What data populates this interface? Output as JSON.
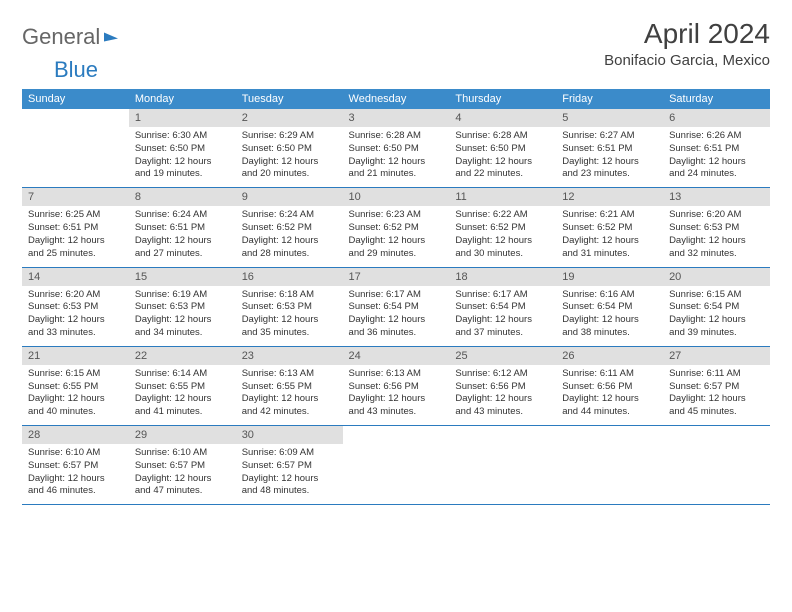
{
  "logo": {
    "word1": "General",
    "word2": "Blue"
  },
  "title": "April 2024",
  "location": "Bonifacio Garcia, Mexico",
  "colors": {
    "header_bg": "#3b8bca",
    "header_text": "#ffffff",
    "daynum_bg": "#e0e0e0",
    "daynum_text": "#555555",
    "body_text": "#333333",
    "rule": "#2b7bbf",
    "page_bg": "#ffffff",
    "title_text": "#404040",
    "logo_gray": "#666666",
    "logo_blue": "#2b7bbf"
  },
  "day_headers": [
    "Sunday",
    "Monday",
    "Tuesday",
    "Wednesday",
    "Thursday",
    "Friday",
    "Saturday"
  ],
  "weeks": [
    [
      {
        "empty": true
      },
      {
        "num": "1",
        "sunrise": "Sunrise: 6:30 AM",
        "sunset": "Sunset: 6:50 PM",
        "day1": "Daylight: 12 hours",
        "day2": "and 19 minutes."
      },
      {
        "num": "2",
        "sunrise": "Sunrise: 6:29 AM",
        "sunset": "Sunset: 6:50 PM",
        "day1": "Daylight: 12 hours",
        "day2": "and 20 minutes."
      },
      {
        "num": "3",
        "sunrise": "Sunrise: 6:28 AM",
        "sunset": "Sunset: 6:50 PM",
        "day1": "Daylight: 12 hours",
        "day2": "and 21 minutes."
      },
      {
        "num": "4",
        "sunrise": "Sunrise: 6:28 AM",
        "sunset": "Sunset: 6:50 PM",
        "day1": "Daylight: 12 hours",
        "day2": "and 22 minutes."
      },
      {
        "num": "5",
        "sunrise": "Sunrise: 6:27 AM",
        "sunset": "Sunset: 6:51 PM",
        "day1": "Daylight: 12 hours",
        "day2": "and 23 minutes."
      },
      {
        "num": "6",
        "sunrise": "Sunrise: 6:26 AM",
        "sunset": "Sunset: 6:51 PM",
        "day1": "Daylight: 12 hours",
        "day2": "and 24 minutes."
      }
    ],
    [
      {
        "num": "7",
        "sunrise": "Sunrise: 6:25 AM",
        "sunset": "Sunset: 6:51 PM",
        "day1": "Daylight: 12 hours",
        "day2": "and 25 minutes."
      },
      {
        "num": "8",
        "sunrise": "Sunrise: 6:24 AM",
        "sunset": "Sunset: 6:51 PM",
        "day1": "Daylight: 12 hours",
        "day2": "and 27 minutes."
      },
      {
        "num": "9",
        "sunrise": "Sunrise: 6:24 AM",
        "sunset": "Sunset: 6:52 PM",
        "day1": "Daylight: 12 hours",
        "day2": "and 28 minutes."
      },
      {
        "num": "10",
        "sunrise": "Sunrise: 6:23 AM",
        "sunset": "Sunset: 6:52 PM",
        "day1": "Daylight: 12 hours",
        "day2": "and 29 minutes."
      },
      {
        "num": "11",
        "sunrise": "Sunrise: 6:22 AM",
        "sunset": "Sunset: 6:52 PM",
        "day1": "Daylight: 12 hours",
        "day2": "and 30 minutes."
      },
      {
        "num": "12",
        "sunrise": "Sunrise: 6:21 AM",
        "sunset": "Sunset: 6:52 PM",
        "day1": "Daylight: 12 hours",
        "day2": "and 31 minutes."
      },
      {
        "num": "13",
        "sunrise": "Sunrise: 6:20 AM",
        "sunset": "Sunset: 6:53 PM",
        "day1": "Daylight: 12 hours",
        "day2": "and 32 minutes."
      }
    ],
    [
      {
        "num": "14",
        "sunrise": "Sunrise: 6:20 AM",
        "sunset": "Sunset: 6:53 PM",
        "day1": "Daylight: 12 hours",
        "day2": "and 33 minutes."
      },
      {
        "num": "15",
        "sunrise": "Sunrise: 6:19 AM",
        "sunset": "Sunset: 6:53 PM",
        "day1": "Daylight: 12 hours",
        "day2": "and 34 minutes."
      },
      {
        "num": "16",
        "sunrise": "Sunrise: 6:18 AM",
        "sunset": "Sunset: 6:53 PM",
        "day1": "Daylight: 12 hours",
        "day2": "and 35 minutes."
      },
      {
        "num": "17",
        "sunrise": "Sunrise: 6:17 AM",
        "sunset": "Sunset: 6:54 PM",
        "day1": "Daylight: 12 hours",
        "day2": "and 36 minutes."
      },
      {
        "num": "18",
        "sunrise": "Sunrise: 6:17 AM",
        "sunset": "Sunset: 6:54 PM",
        "day1": "Daylight: 12 hours",
        "day2": "and 37 minutes."
      },
      {
        "num": "19",
        "sunrise": "Sunrise: 6:16 AM",
        "sunset": "Sunset: 6:54 PM",
        "day1": "Daylight: 12 hours",
        "day2": "and 38 minutes."
      },
      {
        "num": "20",
        "sunrise": "Sunrise: 6:15 AM",
        "sunset": "Sunset: 6:54 PM",
        "day1": "Daylight: 12 hours",
        "day2": "and 39 minutes."
      }
    ],
    [
      {
        "num": "21",
        "sunrise": "Sunrise: 6:15 AM",
        "sunset": "Sunset: 6:55 PM",
        "day1": "Daylight: 12 hours",
        "day2": "and 40 minutes."
      },
      {
        "num": "22",
        "sunrise": "Sunrise: 6:14 AM",
        "sunset": "Sunset: 6:55 PM",
        "day1": "Daylight: 12 hours",
        "day2": "and 41 minutes."
      },
      {
        "num": "23",
        "sunrise": "Sunrise: 6:13 AM",
        "sunset": "Sunset: 6:55 PM",
        "day1": "Daylight: 12 hours",
        "day2": "and 42 minutes."
      },
      {
        "num": "24",
        "sunrise": "Sunrise: 6:13 AM",
        "sunset": "Sunset: 6:56 PM",
        "day1": "Daylight: 12 hours",
        "day2": "and 43 minutes."
      },
      {
        "num": "25",
        "sunrise": "Sunrise: 6:12 AM",
        "sunset": "Sunset: 6:56 PM",
        "day1": "Daylight: 12 hours",
        "day2": "and 43 minutes."
      },
      {
        "num": "26",
        "sunrise": "Sunrise: 6:11 AM",
        "sunset": "Sunset: 6:56 PM",
        "day1": "Daylight: 12 hours",
        "day2": "and 44 minutes."
      },
      {
        "num": "27",
        "sunrise": "Sunrise: 6:11 AM",
        "sunset": "Sunset: 6:57 PM",
        "day1": "Daylight: 12 hours",
        "day2": "and 45 minutes."
      }
    ],
    [
      {
        "num": "28",
        "sunrise": "Sunrise: 6:10 AM",
        "sunset": "Sunset: 6:57 PM",
        "day1": "Daylight: 12 hours",
        "day2": "and 46 minutes."
      },
      {
        "num": "29",
        "sunrise": "Sunrise: 6:10 AM",
        "sunset": "Sunset: 6:57 PM",
        "day1": "Daylight: 12 hours",
        "day2": "and 47 minutes."
      },
      {
        "num": "30",
        "sunrise": "Sunrise: 6:09 AM",
        "sunset": "Sunset: 6:57 PM",
        "day1": "Daylight: 12 hours",
        "day2": "and 48 minutes."
      },
      {
        "empty": true
      },
      {
        "empty": true
      },
      {
        "empty": true
      },
      {
        "empty": true
      }
    ]
  ]
}
